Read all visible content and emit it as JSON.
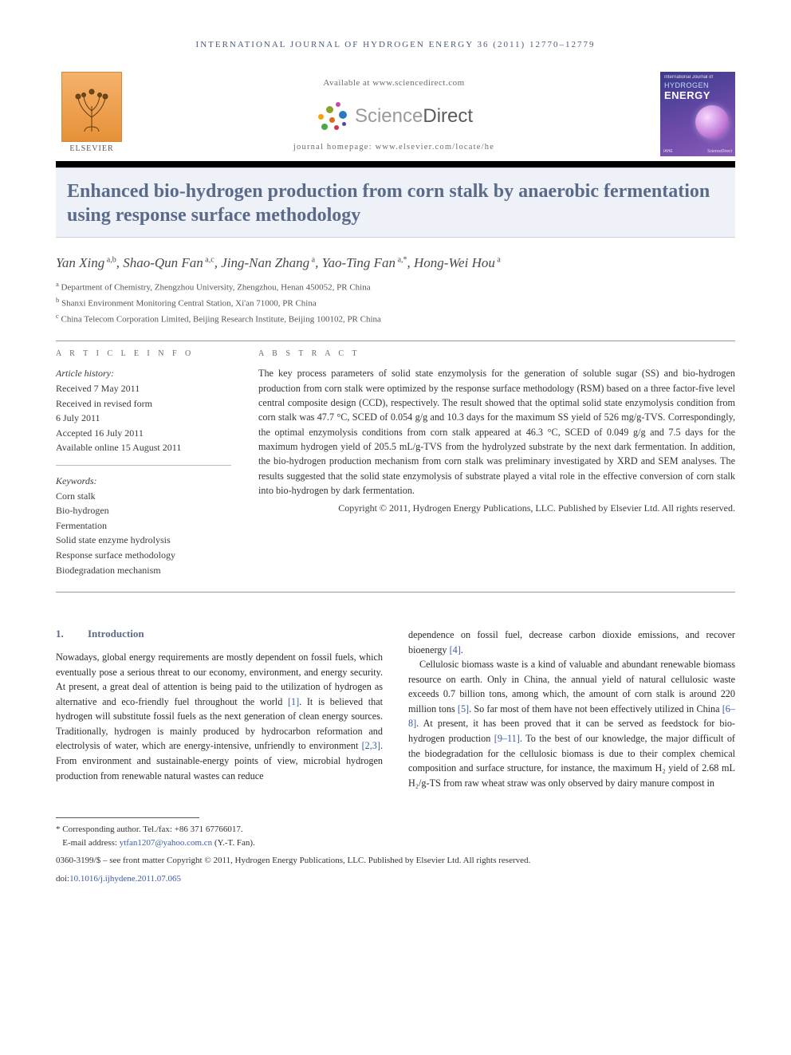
{
  "running_head": "INTERNATIONAL JOURNAL OF HYDROGEN ENERGY 36 (2011) 12770–12779",
  "header": {
    "available": "Available at www.sciencedirect.com",
    "sd_brand_light": "Science",
    "sd_brand_dark": "Direct",
    "homepage": "journal homepage: www.elsevier.com/locate/he",
    "elsevier": "ELSEVIER",
    "cover_top": "International Journal of",
    "cover_hydrogen": "HYDROGEN",
    "cover_energy": "ENERGY"
  },
  "title": "Enhanced bio-hydrogen production from corn stalk by anaerobic fermentation using response surface methodology",
  "authors_html": "Yan Xing<sup> a,b</sup>, Shao-Qun Fan<sup> a,c</sup>, Jing-Nan Zhang<sup> a</sup>, Yao-Ting Fan<sup> a,*</sup>, Hong-Wei Hou<sup> a</sup>",
  "affiliations": [
    "a|Department of Chemistry, Zhengzhou University, Zhengzhou, Henan 450052, PR China",
    "b|Shanxi Environment Monitoring Central Station, Xi'an 71000, PR China",
    "c|China Telecom Corporation Limited, Beijing Research Institute, Beijing 100102, PR China"
  ],
  "info_head": "A R T I C L E   I N F O",
  "abs_head": "A B S T R A C T",
  "history_label": "Article history:",
  "history": [
    "Received 7 May 2011",
    "Received in revised form",
    "6 July 2011",
    "Accepted 16 July 2011",
    "Available online 15 August 2011"
  ],
  "keywords_label": "Keywords:",
  "keywords": [
    "Corn stalk",
    "Bio-hydrogen",
    "Fermentation",
    "Solid state enzyme hydrolysis",
    "Response surface methodology",
    "Biodegradation mechanism"
  ],
  "abstract": "The key process parameters of solid state enzymolysis for the generation of soluble sugar (SS) and bio-hydrogen production from corn stalk were optimized by the response surface methodology (RSM) based on a three factor-five level central composite design (CCD), respectively. The result showed that the optimal solid state enzymolysis condition from corn stalk was 47.7 °C, SCED of 0.054 g/g and 10.3 days for the maximum SS yield of 526 mg/g-TVS. Correspondingly, the optimal enzymolysis conditions from corn stalk appeared at 46.3 °C, SCED of 0.049 g/g and 7.5 days for the maximum hydrogen yield of 205.5 mL/g-TVS from the hydrolyzed substrate by the next dark fermentation. In addition, the bio-hydrogen production mechanism from corn stalk was preliminary investigated by XRD and SEM analyses. The results suggested that the solid state enzymolysis of substrate played a vital role in the effective conversion of corn stalk into bio-hydrogen by dark fermentation.",
  "copyright": "Copyright © 2011, Hydrogen Energy Publications, LLC. Published by Elsevier Ltd. All rights reserved.",
  "sec1_num": "1.",
  "sec1_title": "Introduction",
  "col1": "Nowadays, global energy requirements are mostly dependent on fossil fuels, which eventually pose a serious threat to our economy, environment, and energy security. At present, a great deal of attention is being paid to the utilization of hydrogen as alternative and eco-friendly fuel throughout the world <span class=\"ref\">[1]</span>. It is believed that hydrogen will substitute fossil fuels as the next generation of clean energy sources. Traditionally, hydrogen is mainly produced by hydrocarbon reformation and electrolysis of water, which are energy-intensive, unfriendly to environment <span class=\"ref\">[2,3]</span>. From environment and sustainable-energy points of view, microbial hydrogen production from renewable natural wastes can reduce",
  "col2_p1": "dependence on fossil fuel, decrease carbon dioxide emissions, and recover bioenergy <span class=\"ref\">[4]</span>.",
  "col2_p2": "Cellulosic biomass waste is a kind of valuable and abundant renewable biomass resource on earth. Only in China, the annual yield of natural cellulosic waste exceeds 0.7 billion tons, among which, the amount of corn stalk is around 220 million tons <span class=\"ref\">[5]</span>. So far most of them have not been effectively utilized in China <span class=\"ref\">[6–8]</span>. At present, it has been proved that it can be served as feedstock for bio-hydrogen production <span class=\"ref\">[9–11]</span>. To the best of our knowledge, the major difficult of the biodegradation for the cellulosic biomass is due to their complex chemical composition and surface structure, for instance, the maximum H₂ yield of 2.68 mL H₂/g-TS from raw wheat straw was only observed by dairy manure compost in",
  "corr": "* Corresponding author. Tel./fax: +86 371 67766017.",
  "email_label": "E-mail address:",
  "email": "ytfan1207@yahoo.com.cn",
  "email_name": "(Y.-T. Fan).",
  "footer1": "0360-3199/$ – see front matter Copyright © 2011, Hydrogen Energy Publications, LLC. Published by Elsevier Ltd. All rights reserved.",
  "footer2_label": "doi:",
  "footer2_link": "10.1016/j.ijhydene.2011.07.065",
  "colors": {
    "heading": "#5a6b8a",
    "link": "#3a5aaa",
    "titlebg": "#eef1f7"
  }
}
